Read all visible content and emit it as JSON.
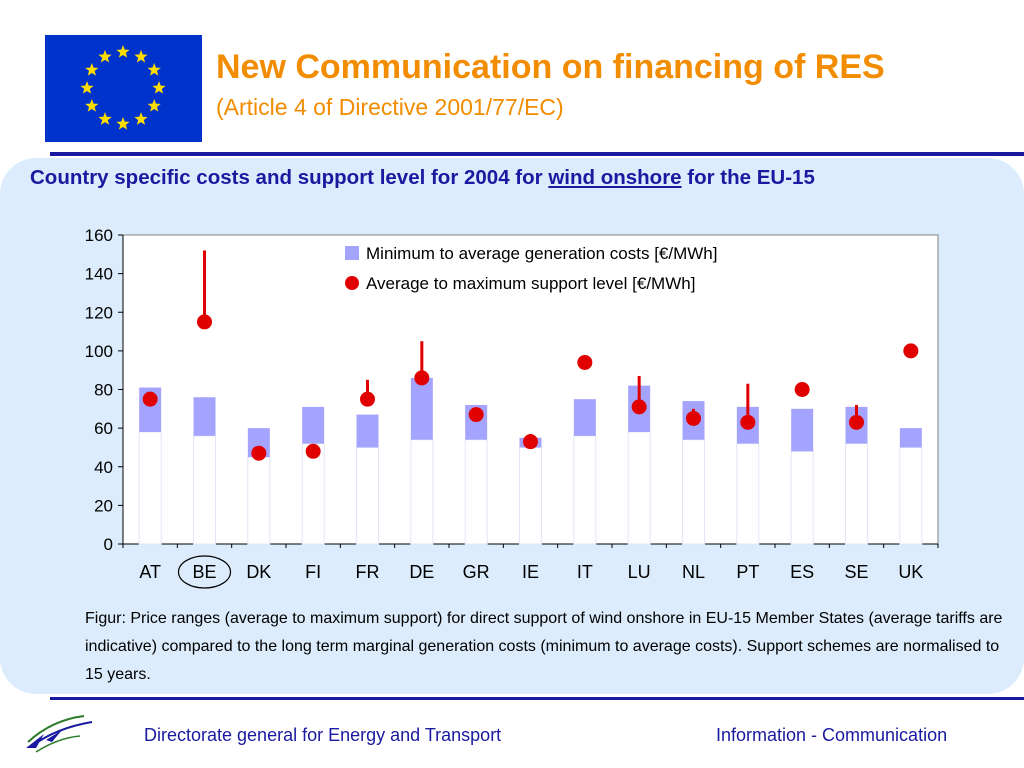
{
  "header": {
    "title": "New Communication on financing of RES",
    "subtitle": "(Article 4 of Directive 2001/77/EC)"
  },
  "heading": {
    "prefix": "Country specific costs and support level for 2004 for ",
    "emphasis": "wind onshore",
    "suffix": " for the EU-15"
  },
  "caption": "Figur: Price ranges (average to maximum support) for direct support of wind onshore in EU-15 Member States (average tariffs are indicative) compared to the long term marginal generation costs (minimum to average costs). Support schemes are normalised to 15 years.",
  "footer": {
    "left": "Directorate general for Energy and Transport",
    "right": "Information - Communication"
  },
  "colors": {
    "title": "#f28c00",
    "navy": "#1a1aa0",
    "panel": "#dcecfc",
    "bar": "#a4a4ff",
    "marker": "#e00000",
    "flag": "#0033cc",
    "star": "#ffdd00"
  },
  "icons": [
    "eu-flag-icon",
    "dg-tren-logo-icon"
  ],
  "chart_data": {
    "type": "bar",
    "categories": [
      "AT",
      "BE",
      "DK",
      "FI",
      "FR",
      "DE",
      "GR",
      "IE",
      "IT",
      "LU",
      "NL",
      "PT",
      "ES",
      "SE",
      "UK"
    ],
    "highlighted_category": "BE",
    "ylim": [
      0,
      160
    ],
    "yticks": [
      0,
      20,
      40,
      60,
      80,
      100,
      120,
      140,
      160
    ],
    "legend_position": "top-right",
    "series": [
      {
        "name": "Minimum to average generation costs [€/MWh]",
        "kind": "range-bar",
        "low": [
          58,
          56,
          45,
          52,
          50,
          54,
          54,
          50,
          56,
          58,
          54,
          52,
          48,
          52,
          50
        ],
        "high": [
          81,
          76,
          60,
          71,
          67,
          86,
          72,
          55,
          75,
          82,
          74,
          71,
          70,
          71,
          60
        ]
      },
      {
        "name": "Average to maximum support level [€/MWh]",
        "kind": "marker-with-range",
        "average": [
          75,
          115,
          47,
          48,
          75,
          86,
          67,
          53,
          94,
          71,
          65,
          63,
          80,
          63,
          100
        ],
        "maximum": [
          75,
          152,
          47,
          48,
          85,
          105,
          67,
          57,
          94,
          87,
          70,
          83,
          82,
          72,
          103
        ]
      }
    ]
  }
}
